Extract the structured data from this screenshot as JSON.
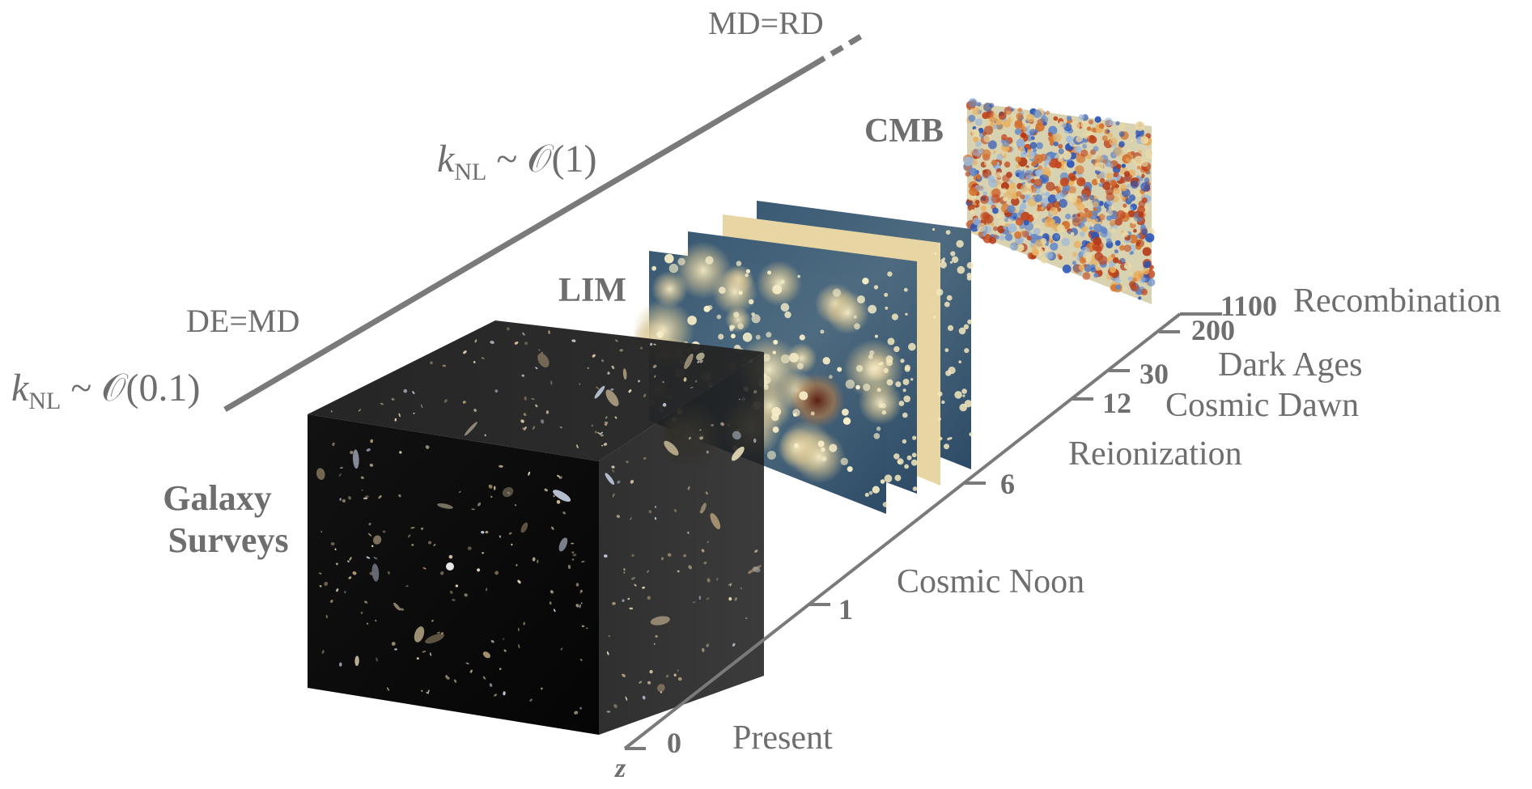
{
  "probes": {
    "galaxy_line1": "Galaxy",
    "galaxy_line2": "Surveys",
    "lim": "LIM",
    "cmb": "CMB"
  },
  "scale_line": {
    "kNL_low_prefix": "k",
    "kNL_low_sub": "NL",
    "kNL_low_rest": " ~ 𝒪(0.1)",
    "de_md": "DE=MD",
    "kNL_high_prefix": "k",
    "kNL_high_sub": "NL",
    "kNL_high_rest": " ~ 𝒪(1)",
    "md_rd": "MD=RD"
  },
  "redshift_axis": {
    "symbol": "z",
    "ticks": [
      "0",
      "1",
      "6",
      "12",
      "30",
      "200",
      "1100"
    ],
    "eras": [
      "Present",
      "Cosmic Noon",
      "Reionization",
      "Cosmic Dawn",
      "Dark Ages",
      "Recombination"
    ]
  },
  "colors": {
    "label_gray": "#6e6e6e",
    "line_gray": "#7a7a7a",
    "cube_black": "#0b0b0b",
    "lim_dark": "#2c4a63",
    "lim_light": "#f1e4b5",
    "cmb_red": "#c2471f",
    "cmb_blue": "#2a54b8"
  }
}
